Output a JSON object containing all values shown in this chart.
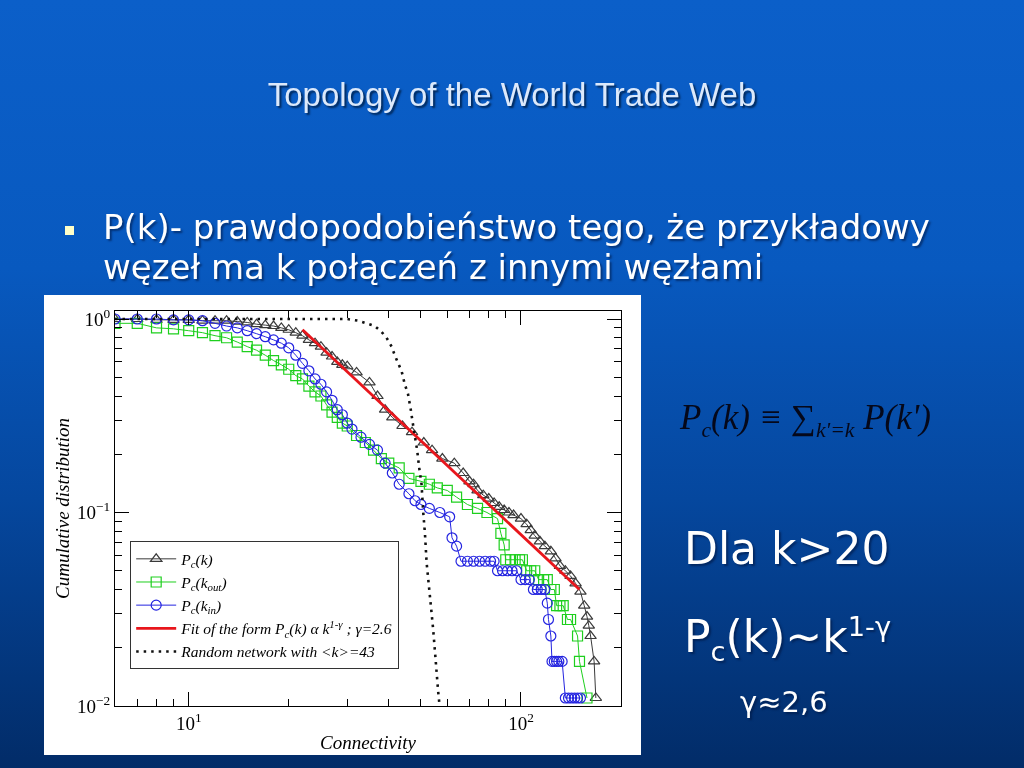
{
  "chart_data": {
    "type": "line",
    "title": "Topology of the World Trade Web",
    "xlabel": "Connectivity",
    "ylabel": "Cumulative distribution",
    "log": "xy",
    "xlim": [
      6,
      200
    ],
    "ylim": [
      0.01,
      1.1
    ],
    "xticks": [
      {
        "value": 7,
        "label": null
      },
      {
        "value": 8,
        "label": null
      },
      {
        "value": 9,
        "label": null
      },
      {
        "value": 10,
        "label": "10$^{1}$"
      },
      {
        "value": 20,
        "label": null
      },
      {
        "value": 30,
        "label": null
      },
      {
        "value": 40,
        "label": null
      },
      {
        "value": 50,
        "label": null
      },
      {
        "value": 60,
        "label": null
      },
      {
        "value": 70,
        "label": null
      },
      {
        "value": 80,
        "label": null
      },
      {
        "value": 90,
        "label": null
      },
      {
        "value": 100,
        "label": "10$^{2}$"
      }
    ],
    "yticks": [
      {
        "value": 0.01,
        "label": "10$^{−2}$"
      },
      {
        "value": 0.02,
        "label": null
      },
      {
        "value": 0.03,
        "label": null
      },
      {
        "value": 0.04,
        "label": null
      },
      {
        "value": 0.05,
        "label": null
      },
      {
        "value": 0.06,
        "label": null
      },
      {
        "value": 0.07,
        "label": null
      },
      {
        "value": 0.08,
        "label": null
      },
      {
        "value": 0.09,
        "label": null
      },
      {
        "value": 0.1,
        "label": "10$^{−1}$"
      },
      {
        "value": 0.2,
        "label": null
      },
      {
        "value": 0.3,
        "label": null
      },
      {
        "value": 0.4,
        "label": null
      },
      {
        "value": 0.5,
        "label": null
      },
      {
        "value": 0.6,
        "label": null
      },
      {
        "value": 0.7,
        "label": null
      },
      {
        "value": 0.8,
        "label": null
      },
      {
        "value": 0.9,
        "label": null
      },
      {
        "value": 1,
        "label": "10$^{0}$"
      }
    ],
    "legend": "bottom left",
    "series": [
      {
        "name": "P$_{c}$(k)",
        "color": "#3a3a3a",
        "marker": "triangle",
        "line_style": "solid",
        "x": [
          6,
          7,
          8,
          9,
          10,
          11,
          12,
          13,
          14,
          15,
          16,
          17,
          18,
          19,
          20,
          21,
          22,
          23,
          24,
          25,
          26,
          27,
          28,
          29,
          30,
          32,
          35,
          37,
          39,
          41,
          44,
          47,
          51,
          54,
          58,
          63,
          67,
          70,
          72,
          74,
          77,
          80,
          83,
          86,
          89,
          92,
          95,
          100,
          104,
          107,
          110,
          114,
          118,
          123,
          127,
          131,
          136,
          141,
          146,
          151,
          155,
          158,
          160,
          162,
          166,
          168
        ],
        "values": [
          1.0,
          1.0,
          0.99,
          0.99,
          0.99,
          0.98,
          0.98,
          0.98,
          0.97,
          0.96,
          0.94,
          0.93,
          0.92,
          0.9,
          0.88,
          0.85,
          0.82,
          0.78,
          0.75,
          0.72,
          0.67,
          0.64,
          0.6,
          0.58,
          0.57,
          0.53,
          0.47,
          0.4,
          0.34,
          0.31,
          0.28,
          0.26,
          0.23,
          0.21,
          0.19,
          0.18,
          0.16,
          0.145,
          0.14,
          0.13,
          0.123,
          0.118,
          0.112,
          0.107,
          0.103,
          0.1,
          0.097,
          0.093,
          0.087,
          0.081,
          0.076,
          0.071,
          0.067,
          0.063,
          0.058,
          0.053,
          0.05,
          0.047,
          0.043,
          0.039,
          0.033,
          0.029,
          0.026,
          0.023,
          0.017,
          0.011
        ]
      },
      {
        "name": "P$_{c}$(k$_{out}$)",
        "color": "#1ecf1e",
        "marker": "square",
        "line_style": "solid",
        "x": [
          6,
          7,
          8,
          9,
          10,
          11,
          12,
          13,
          14,
          15,
          16,
          17,
          18,
          19,
          20,
          21,
          22,
          23,
          24,
          25,
          26,
          27,
          28,
          29,
          30,
          32,
          34,
          36,
          38,
          40,
          43,
          46,
          50,
          53,
          56,
          60,
          64,
          69,
          74,
          79,
          85,
          87,
          89,
          90,
          93,
          96,
          99,
          101,
          104,
          107,
          110,
          113,
          117,
          120,
          123,
          126,
          128,
          131,
          134,
          138,
          141,
          148,
          150,
          158
        ],
        "values": [
          0.95,
          0.95,
          0.9,
          0.89,
          0.87,
          0.85,
          0.82,
          0.8,
          0.76,
          0.72,
          0.69,
          0.65,
          0.61,
          0.58,
          0.55,
          0.51,
          0.49,
          0.45,
          0.42,
          0.4,
          0.36,
          0.33,
          0.31,
          0.29,
          0.28,
          0.25,
          0.23,
          0.21,
          0.19,
          0.18,
          0.17,
          0.15,
          0.145,
          0.14,
          0.134,
          0.13,
          0.12,
          0.11,
          0.105,
          0.1,
          0.093,
          0.078,
          0.068,
          0.057,
          0.057,
          0.057,
          0.057,
          0.057,
          0.05,
          0.05,
          0.05,
          0.045,
          0.045,
          0.045,
          0.04,
          0.04,
          0.033,
          0.033,
          0.033,
          0.028,
          0.028,
          0.023,
          0.017,
          0.011
        ]
      },
      {
        "name": "P$_{c}$(k$_{in}$)",
        "color": "#2424e0",
        "marker": "circle",
        "line_style": "solid",
        "x": [
          6,
          7,
          8,
          9,
          10,
          11,
          12,
          13,
          14,
          15,
          16,
          17,
          18,
          19,
          20,
          21,
          22,
          23,
          24,
          25,
          26,
          27,
          28,
          29,
          30,
          31,
          33,
          35,
          37,
          39,
          41,
          43,
          46,
          48,
          50,
          53,
          57,
          61,
          62,
          64,
          66,
          69,
          72,
          75,
          78,
          81,
          83,
          85,
          88,
          91,
          94,
          97,
          100,
          103,
          106,
          109,
          112,
          115,
          118,
          120,
          121,
          123,
          124,
          126,
          128,
          130,
          133,
          136,
          139,
          142,
          145,
          148,
          151
        ],
        "values": [
          1.0,
          1.0,
          1.0,
          0.99,
          0.99,
          0.98,
          0.95,
          0.92,
          0.9,
          0.87,
          0.84,
          0.81,
          0.78,
          0.75,
          0.71,
          0.65,
          0.59,
          0.54,
          0.49,
          0.46,
          0.42,
          0.38,
          0.34,
          0.32,
          0.29,
          0.27,
          0.245,
          0.225,
          0.21,
          0.18,
          0.16,
          0.14,
          0.125,
          0.115,
          0.11,
          0.105,
          0.1,
          0.095,
          0.074,
          0.067,
          0.056,
          0.056,
          0.056,
          0.056,
          0.056,
          0.056,
          0.056,
          0.05,
          0.05,
          0.05,
          0.05,
          0.05,
          0.045,
          0.045,
          0.045,
          0.04,
          0.04,
          0.04,
          0.04,
          0.034,
          0.028,
          0.023,
          0.017,
          0.017,
          0.017,
          0.017,
          0.017,
          0.011,
          0.011,
          0.011,
          0.011,
          0.011,
          0.011
        ]
      },
      {
        "name": "Fit of the form P$_{c}$(k) α k$^{1-γ}$ ; γ=2.6",
        "color": "#e8161c",
        "marker": "none",
        "line_style": "solid",
        "x": [
          22,
          150
        ],
        "values": [
          0.88,
          0.04
        ]
      },
      {
        "name": "Random network with <k>=43",
        "color": "#111111",
        "marker": "none",
        "line_style": "dotted",
        "x": [
          6,
          30,
          32.4,
          34.3,
          36.3,
          38,
          39.4,
          40.8,
          41.7,
          42.7,
          43.7,
          44.7,
          45.7,
          46.6,
          47.1,
          47.9,
          48.7,
          49.4,
          50.2,
          50.8,
          51.4,
          52,
          53.2,
          54.4,
          55.4,
          56.3,
          56.9
        ],
        "values": [
          1,
          1,
          0.98,
          0.95,
          0.92,
          0.86,
          0.8,
          0.72,
          0.65,
          0.59,
          0.54,
          0.46,
          0.41,
          0.34,
          0.3,
          0.25,
          0.21,
          0.17,
          0.14,
          0.1,
          0.078,
          0.055,
          0.037,
          0.025,
          0.017,
          0.012,
          0.01
        ]
      }
    ],
    "annotations": [
      "P(k)- prawdopodobieństwo tego, że przykładowy węzeł ma k połączeń z innymi węzłami",
      "P$_{c}$(k) ≡ ∑$_{k'=k}$ P(k')",
      "Dla k>20",
      "P$_{c}$(k)~k$^{1-γ}$",
      "γ≈2,6"
    ]
  }
}
